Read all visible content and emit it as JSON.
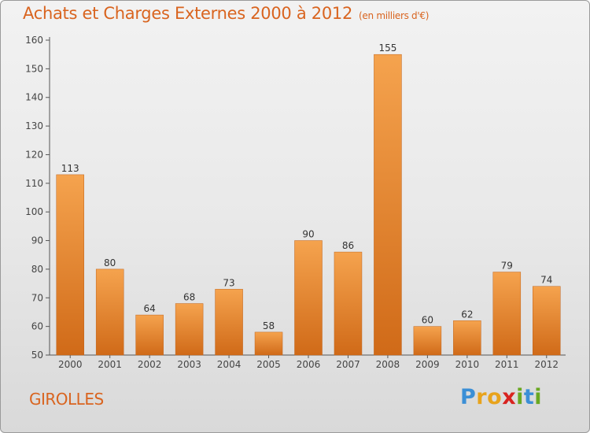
{
  "header": {
    "title": "Achats et Charges Externes 2000 à 2012",
    "subtitle": "(en milliers d'€)"
  },
  "footer": {
    "commune": "GIROLLES",
    "logo_letters": [
      "P",
      "r",
      "o",
      "x",
      "i",
      "t",
      "i"
    ],
    "logo_colors": [
      "#3b8fd6",
      "#e8a31c",
      "#e8a31c",
      "#d8231f",
      "#6aa822",
      "#3b8fd6",
      "#6aa822"
    ]
  },
  "colors": {
    "accent": "#d9641f",
    "bar_top": "#f5a34e",
    "bar_bottom": "#d06a18"
  },
  "chart_data": {
    "type": "bar",
    "title": "Achats et Charges Externes 2000 à 2012",
    "subtitle": "(en milliers d'€)",
    "categories": [
      "2000",
      "2001",
      "2002",
      "2003",
      "2004",
      "2005",
      "2006",
      "2007",
      "2008",
      "2009",
      "2010",
      "2011",
      "2012"
    ],
    "values": [
      113,
      80,
      64,
      68,
      73,
      58,
      90,
      86,
      155,
      60,
      62,
      79,
      74
    ],
    "ylim": [
      50,
      160
    ],
    "yticks": [
      50,
      60,
      70,
      80,
      90,
      100,
      110,
      120,
      130,
      140,
      150,
      160
    ],
    "grid": false,
    "data_labels": true
  }
}
